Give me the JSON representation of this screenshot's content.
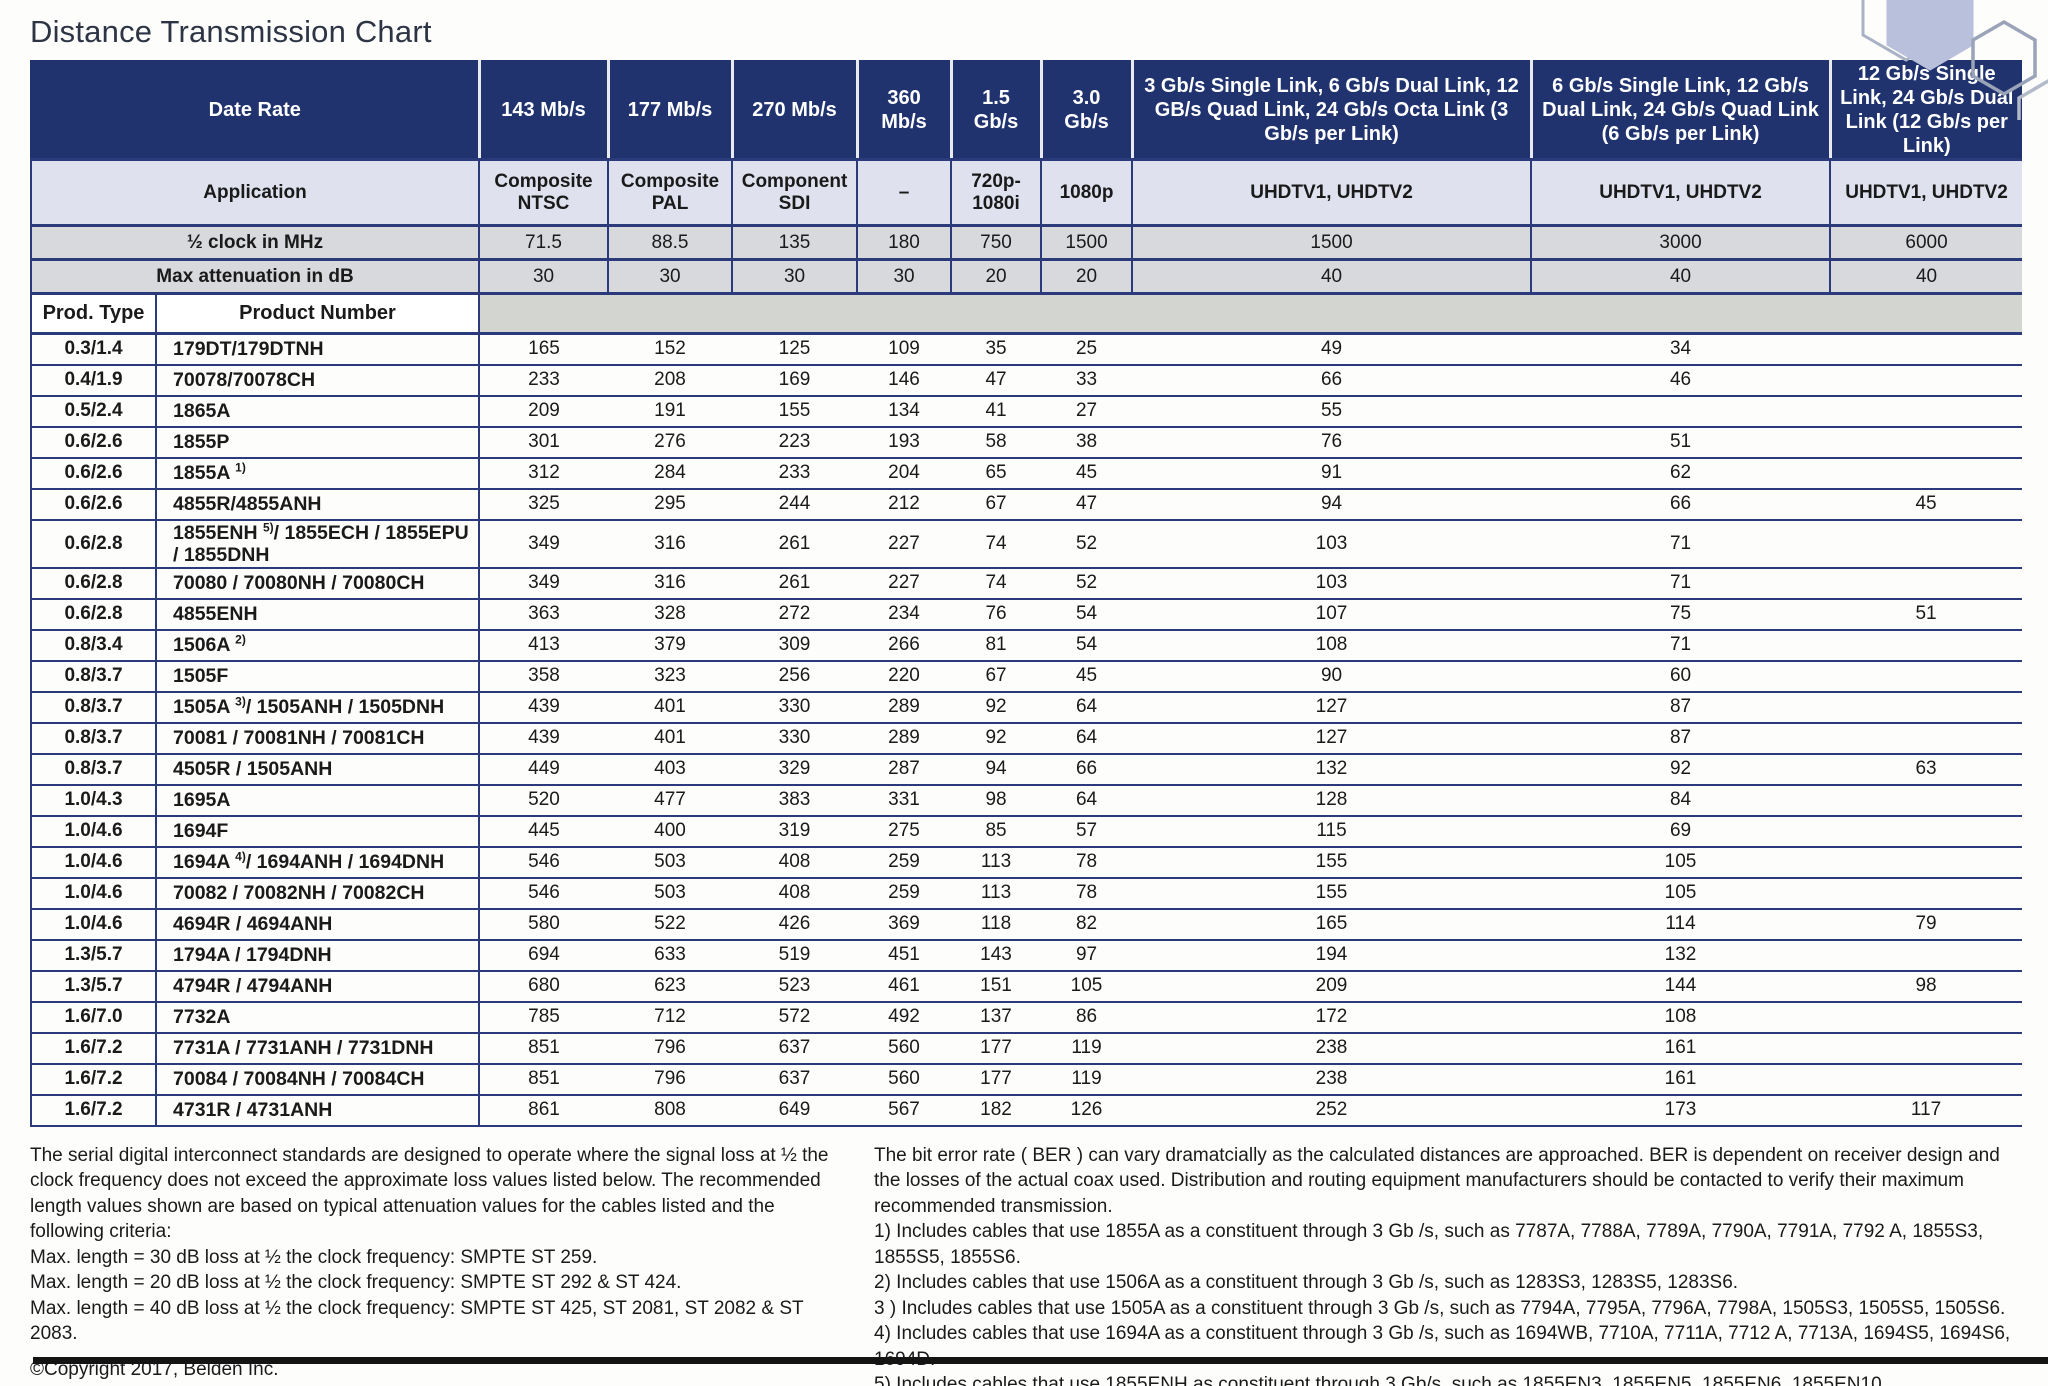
{
  "title": "Distance Transmission Chart",
  "colors": {
    "header_navy": "#20336f",
    "rule_navy": "#2b3a7a",
    "application_row_bg": "#dfe2ee",
    "clock_row_bg": "#d8d9dd",
    "prodhead_gray_bg": "#d3d6d0",
    "hexagon_fill": "#b9c0dc",
    "hexagon_outline": "#9aa3b8"
  },
  "table": {
    "corner": {
      "date_rate": "Date Rate",
      "application": "Application",
      "half_clock": "½ clock in MHz",
      "max_atten": "Max attenuation in dB",
      "prod_type": "Prod. Type",
      "product_number": "Product Number"
    },
    "data_rate_headers": [
      "143 Mb/s",
      "177 Mb/s",
      "270 Mb/s",
      "360 Mb/s",
      "1.5 Gb/s",
      "3.0 Gb/s",
      "3 Gb/s Single Link, 6 Gb/s Dual Link, 12 GB/s Quad Link, 24 Gb/s Octa Link (3 Gb/s per Link)",
      "6 Gb/s Single Link, 12 Gb/s Dual Link, 24 Gb/s Quad Link (6 Gb/s per Link)",
      "12 Gb/s Single Link, 24 Gb/s Dual Link (12 Gb/s per Link)"
    ],
    "applications": [
      "Composite NTSC",
      "Composite PAL",
      "Component SDI",
      "–",
      "720p-1080i",
      "1080p",
      "UHDTV1, UHDTV2",
      "UHDTV1, UHDTV2",
      "UHDTV1, UHDTV2"
    ],
    "half_clock_values": [
      "71.5",
      "88.5",
      "135",
      "180",
      "750",
      "1500",
      "1500",
      "3000",
      "6000"
    ],
    "max_attenuation_values": [
      "30",
      "30",
      "30",
      "30",
      "20",
      "20",
      "40",
      "40",
      "40"
    ],
    "rows": [
      {
        "type": "0.3/1.4",
        "pre": "179DT/179DTNH",
        "sup": "",
        "post": "",
        "values": [
          "165",
          "152",
          "125",
          "109",
          "35",
          "25",
          "49",
          "34",
          ""
        ]
      },
      {
        "type": "0.4/1.9",
        "pre": "70078/70078CH",
        "sup": "",
        "post": "",
        "values": [
          "233",
          "208",
          "169",
          "146",
          "47",
          "33",
          "66",
          "46",
          ""
        ]
      },
      {
        "type": "0.5/2.4",
        "pre": "1865A",
        "sup": "",
        "post": "",
        "values": [
          "209",
          "191",
          "155",
          "134",
          "41",
          "27",
          "55",
          "",
          ""
        ]
      },
      {
        "type": "0.6/2.6",
        "pre": "1855P",
        "sup": "",
        "post": "",
        "values": [
          "301",
          "276",
          "223",
          "193",
          "58",
          "38",
          "76",
          "51",
          ""
        ]
      },
      {
        "type": "0.6/2.6",
        "pre": "1855A ",
        "sup": "1)",
        "post": "",
        "values": [
          "312",
          "284",
          "233",
          "204",
          "65",
          "45",
          "91",
          "62",
          ""
        ]
      },
      {
        "type": "0.6/2.6",
        "pre": "4855R/4855ANH",
        "sup": "",
        "post": "",
        "values": [
          "325",
          "295",
          "244",
          "212",
          "67",
          "47",
          "94",
          "66",
          "45"
        ]
      },
      {
        "type": "0.6/2.8",
        "pre": "1855ENH ",
        "sup": "5)",
        "post": "/ 1855ECH / 1855EPU / 1855DNH",
        "values": [
          "349",
          "316",
          "261",
          "227",
          "74",
          "52",
          "103",
          "71",
          ""
        ]
      },
      {
        "type": "0.6/2.8",
        "pre": "70080 / 70080NH / 70080CH",
        "sup": "",
        "post": "",
        "values": [
          "349",
          "316",
          "261",
          "227",
          "74",
          "52",
          "103",
          "71",
          ""
        ]
      },
      {
        "type": "0.6/2.8",
        "pre": "4855ENH",
        "sup": "",
        "post": "",
        "values": [
          "363",
          "328",
          "272",
          "234",
          "76",
          "54",
          "107",
          "75",
          "51"
        ]
      },
      {
        "type": "0.8/3.4",
        "pre": "1506A ",
        "sup": "2)",
        "post": "",
        "values": [
          "413",
          "379",
          "309",
          "266",
          "81",
          "54",
          "108",
          "71",
          ""
        ]
      },
      {
        "type": "0.8/3.7",
        "pre": "1505F",
        "sup": "",
        "post": "",
        "values": [
          "358",
          "323",
          "256",
          "220",
          "67",
          "45",
          "90",
          "60",
          ""
        ]
      },
      {
        "type": "0.8/3.7",
        "pre": "1505A ",
        "sup": "3)",
        "post": "/ 1505ANH / 1505DNH",
        "values": [
          "439",
          "401",
          "330",
          "289",
          "92",
          "64",
          "127",
          "87",
          ""
        ]
      },
      {
        "type": "0.8/3.7",
        "pre": "70081 / 70081NH / 70081CH",
        "sup": "",
        "post": "",
        "values": [
          "439",
          "401",
          "330",
          "289",
          "92",
          "64",
          "127",
          "87",
          ""
        ]
      },
      {
        "type": "0.8/3.7",
        "pre": "4505R / 1505ANH",
        "sup": "",
        "post": "",
        "values": [
          "449",
          "403",
          "329",
          "287",
          "94",
          "66",
          "132",
          "92",
          "63"
        ]
      },
      {
        "type": "1.0/4.3",
        "pre": "1695A",
        "sup": "",
        "post": "",
        "values": [
          "520",
          "477",
          "383",
          "331",
          "98",
          "64",
          "128",
          "84",
          ""
        ]
      },
      {
        "type": "1.0/4.6",
        "pre": "1694F",
        "sup": "",
        "post": "",
        "values": [
          "445",
          "400",
          "319",
          "275",
          "85",
          "57",
          "115",
          "69",
          ""
        ]
      },
      {
        "type": "1.0/4.6",
        "pre": "1694A ",
        "sup": "4)",
        "post": "/ 1694ANH / 1694DNH",
        "values": [
          "546",
          "503",
          "408",
          "259",
          "113",
          "78",
          "155",
          "105",
          ""
        ]
      },
      {
        "type": "1.0/4.6",
        "pre": "70082 / 70082NH / 70082CH",
        "sup": "",
        "post": "",
        "values": [
          "546",
          "503",
          "408",
          "259",
          "113",
          "78",
          "155",
          "105",
          ""
        ]
      },
      {
        "type": "1.0/4.6",
        "pre": "4694R / 4694ANH",
        "sup": "",
        "post": "",
        "values": [
          "580",
          "522",
          "426",
          "369",
          "118",
          "82",
          "165",
          "114",
          "79"
        ]
      },
      {
        "type": "1.3/5.7",
        "pre": "1794A / 1794DNH",
        "sup": "",
        "post": "",
        "values": [
          "694",
          "633",
          "519",
          "451",
          "143",
          "97",
          "194",
          "132",
          ""
        ]
      },
      {
        "type": "1.3/5.7",
        "pre": "4794R / 4794ANH",
        "sup": "",
        "post": "",
        "values": [
          "680",
          "623",
          "523",
          "461",
          "151",
          "105",
          "209",
          "144",
          "98"
        ]
      },
      {
        "type": "1.6/7.0",
        "pre": "7732A",
        "sup": "",
        "post": "",
        "values": [
          "785",
          "712",
          "572",
          "492",
          "137",
          "86",
          "172",
          "108",
          ""
        ]
      },
      {
        "type": "1.6/7.2",
        "pre": "7731A / 7731ANH / 7731DNH",
        "sup": "",
        "post": "",
        "values": [
          "851",
          "796",
          "637",
          "560",
          "177",
          "119",
          "238",
          "161",
          ""
        ]
      },
      {
        "type": "1.6/7.2",
        "pre": "70084 / 70084NH / 70084CH",
        "sup": "",
        "post": "",
        "values": [
          "851",
          "796",
          "637",
          "560",
          "177",
          "119",
          "238",
          "161",
          ""
        ]
      },
      {
        "type": "1.6/7.2",
        "pre": "4731R / 4731ANH",
        "sup": "",
        "post": "",
        "values": [
          "861",
          "808",
          "649",
          "567",
          "182",
          "126",
          "252",
          "173",
          "117"
        ]
      }
    ]
  },
  "footer": {
    "left_paragraph": "The serial digital interconnect standards are designed to operate where the signal loss at ½ the clock frequency does not exceed the approximate loss values listed below. The recommended length values shown are based on typical attenuation values for the cables listed and the following criteria:",
    "left_items": [
      "Max. length = 30 dB loss at ½ the clock frequency: SMPTE ST 259.",
      "Max. length = 20 dB loss at ½ the clock frequency: SMPTE ST 292 & ST 424.",
      "Max. length = 40 dB loss at ½ the clock frequency: SMPTE ST 425, ST 2081, ST 2082 & ST 2083."
    ],
    "copyright": "©Copyright 2017, Belden Inc.",
    "right_paragraph": "The bit error rate ( BER ) can vary dramatcially as the calculated distances are approached. BER is dependent on receiver design and the losses of the actual coax used. Distribution and routing equipment manufacturers should be contacted to verify their maximum recommended transmission.",
    "right_items": [
      "1) Includes cables that use 1855A as a constituent through 3 Gb /s, such as 7787A, 7788A, 7789A, 7790A, 7791A, 7792 A, 1855S3, 1855S5, 1855S6.",
      "2) Includes cables that use 1506A as a constituent through 3 Gb /s, such as 1283S3, 1283S5, 1283S6.",
      "3 ) Includes cables that use 1505A as a constituent through 3 Gb /s, such as 7794A, 7795A, 7796A, 7798A, 1505S3, 1505S5, 1505S6.",
      "4) Includes cables that use 1694A as a constituent through 3 Gb /s, such as 1694WB, 7710A, 7711A, 7712 A, 7713A, 1694S5, 1694S6, 1694D.",
      "5) Includes cables that use 1855ENH as constituent through 3 Gb/s, such as 1855EN3, 1855EN5, 1855EN6, 1855EN10."
    ]
  }
}
